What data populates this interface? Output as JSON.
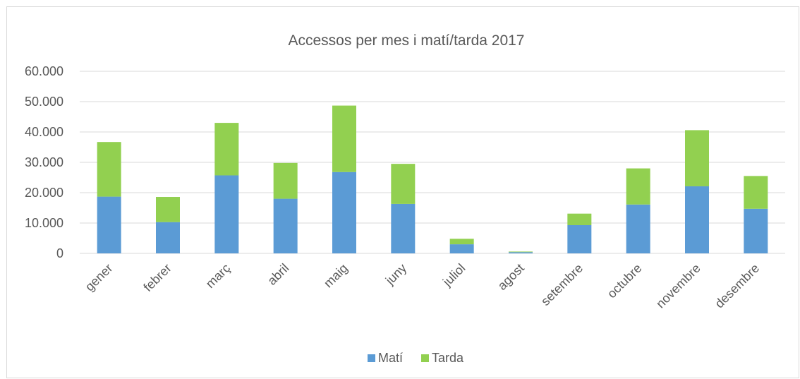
{
  "chart_data": {
    "type": "bar",
    "stacked": true,
    "title": "Accessos per mes i matí/tarda 2017",
    "categories": [
      "gener",
      "febrer",
      "març",
      "abril",
      "maig",
      "juny",
      "juliol",
      "agost",
      "setembre",
      "octubre",
      "novembre",
      "desembre"
    ],
    "series": [
      {
        "name": "Matí",
        "color": "#5b9bd5",
        "values": [
          18700,
          10300,
          25700,
          18000,
          26800,
          16300,
          3000,
          400,
          9300,
          16100,
          22100,
          14700
        ]
      },
      {
        "name": "Tarda",
        "color": "#92d050",
        "values": [
          18000,
          8300,
          17300,
          11800,
          21900,
          13200,
          1800,
          200,
          3800,
          11900,
          18500,
          10800
        ]
      }
    ],
    "ylim": [
      0,
      60000
    ],
    "yticks": [
      0,
      10000,
      20000,
      30000,
      40000,
      50000,
      60000
    ],
    "ytick_labels": [
      "0",
      "10.000",
      "20.000",
      "30.000",
      "40.000",
      "50.000",
      "60.000"
    ],
    "xlabel": "",
    "ylabel": "",
    "grid": true,
    "legend_position": "bottom",
    "colors": {
      "grid": "#d9d9d9",
      "text": "#595959",
      "border": "#d9d9d9"
    }
  }
}
